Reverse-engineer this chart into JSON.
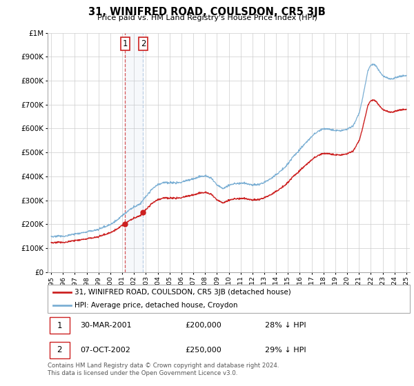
{
  "title": "31, WINIFRED ROAD, COULSDON, CR5 3JB",
  "subtitle": "Price paid vs. HM Land Registry's House Price Index (HPI)",
  "legend_line1": "31, WINIFRED ROAD, COULSDON, CR5 3JB (detached house)",
  "legend_line2": "HPI: Average price, detached house, Croydon",
  "footnote": "Contains HM Land Registry data © Crown copyright and database right 2024.\nThis data is licensed under the Open Government Licence v3.0.",
  "sale1_date": "30-MAR-2001",
  "sale1_price": "£200,000",
  "sale1_hpi": "28% ↓ HPI",
  "sale2_date": "07-OCT-2002",
  "sale2_price": "£250,000",
  "sale2_hpi": "29% ↓ HPI",
  "hpi_color": "#7bafd4",
  "sale_color": "#cc2020",
  "ylim": [
    0,
    1000000
  ],
  "yticks": [
    0,
    100000,
    200000,
    300000,
    400000,
    500000,
    600000,
    700000,
    800000,
    900000,
    1000000
  ],
  "ytick_labels": [
    "£0",
    "£100K",
    "£200K",
    "£300K",
    "£400K",
    "£500K",
    "£600K",
    "£700K",
    "£800K",
    "£900K",
    "£1M"
  ],
  "sale1_year": 2001.24,
  "sale2_year": 2002.77,
  "sale1_price_val": 200000,
  "sale2_price_val": 250000,
  "hpi_keypoints_x": [
    1995,
    1995.5,
    1996,
    1996.5,
    1997,
    1997.5,
    1998,
    1998.5,
    1999,
    1999.5,
    2000,
    2000.5,
    2001,
    2001.5,
    2002,
    2002.5,
    2003,
    2003.5,
    2004,
    2004.5,
    2005,
    2005.5,
    2006,
    2006.5,
    2007,
    2007.5,
    2008,
    2008.5,
    2009,
    2009.5,
    2010,
    2010.5,
    2011,
    2011.5,
    2012,
    2012.5,
    2013,
    2013.5,
    2014,
    2014.5,
    2015,
    2015.5,
    2016,
    2016.5,
    2017,
    2017.5,
    2018,
    2018.5,
    2019,
    2019.5,
    2020,
    2020.5,
    2021,
    2021.25,
    2021.5,
    2021.75,
    2022,
    2022.25,
    2022.5,
    2022.75,
    2023,
    2023.25,
    2023.5,
    2023.75,
    2024,
    2024.5,
    2025
  ],
  "hpi_keypoints_y": [
    148000,
    150000,
    153000,
    157000,
    162000,
    168000,
    173000,
    178000,
    185000,
    195000,
    208000,
    225000,
    247000,
    268000,
    285000,
    300000,
    330000,
    360000,
    378000,
    385000,
    382000,
    383000,
    387000,
    393000,
    400000,
    408000,
    413000,
    405000,
    375000,
    358000,
    370000,
    378000,
    382000,
    380000,
    376000,
    378000,
    385000,
    398000,
    415000,
    435000,
    460000,
    490000,
    520000,
    548000,
    572000,
    590000,
    600000,
    598000,
    592000,
    590000,
    595000,
    610000,
    660000,
    710000,
    775000,
    840000,
    865000,
    870000,
    860000,
    840000,
    820000,
    815000,
    810000,
    808000,
    812000,
    820000,
    820000
  ],
  "background_color": "#ffffff",
  "grid_color": "#cccccc"
}
